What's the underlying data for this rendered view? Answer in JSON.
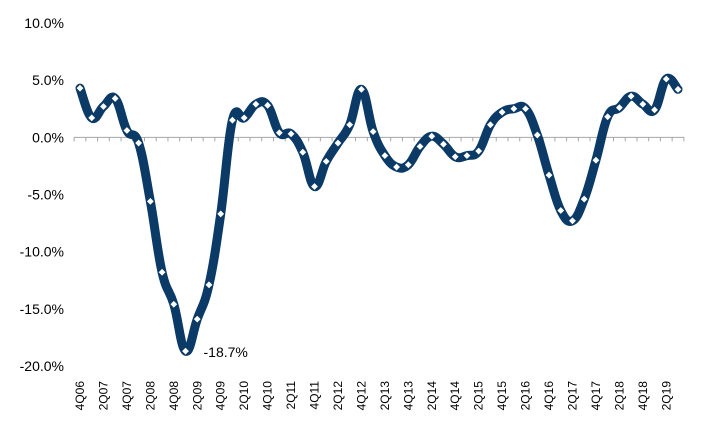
{
  "chart_data": {
    "type": "line",
    "title": "",
    "xlabel": "",
    "ylabel": "",
    "ylim": [
      -20,
      10
    ],
    "ytick_values": [
      10,
      5,
      0,
      -5,
      -10,
      -15,
      -20
    ],
    "ytick_labels": [
      "10.0%",
      "5.0%",
      "0.0%",
      "-5.0%",
      "-10.0%",
      "-15.0%",
      "-20.0%"
    ],
    "grid": false,
    "line_color": "#0b3a66",
    "marker_color": "#ffffff",
    "x": [
      "4Q06",
      "1Q07",
      "2Q07",
      "3Q07",
      "4Q07",
      "1Q08",
      "2Q08",
      "3Q08",
      "4Q08",
      "1Q09",
      "2Q09",
      "3Q09",
      "4Q09",
      "1Q10",
      "2Q10",
      "3Q10",
      "4Q10",
      "1Q11",
      "2Q11",
      "3Q11",
      "4Q11",
      "1Q12",
      "2Q12",
      "3Q12",
      "4Q12",
      "1Q13",
      "2Q13",
      "3Q13",
      "4Q13",
      "1Q14",
      "2Q14",
      "3Q14",
      "4Q14",
      "1Q15",
      "2Q15",
      "3Q15",
      "4Q15",
      "1Q16",
      "2Q16",
      "3Q16",
      "4Q16",
      "1Q17",
      "2Q17",
      "3Q17",
      "4Q17",
      "1Q18",
      "2Q18",
      "3Q18",
      "4Q18",
      "1Q19",
      "2Q19",
      "3Q19"
    ],
    "x_tick_labels": [
      "4Q06",
      "2Q07",
      "4Q07",
      "2Q08",
      "4Q08",
      "2Q09",
      "4Q09",
      "2Q10",
      "4Q10",
      "2Q11",
      "4Q11",
      "2Q12",
      "4Q12",
      "2Q13",
      "4Q13",
      "2Q14",
      "4Q14",
      "2Q15",
      "4Q15",
      "2Q16",
      "4Q16",
      "2Q17",
      "4Q17",
      "2Q18",
      "4Q18",
      "2Q19"
    ],
    "series": [
      {
        "values": [
          4.3,
          1.7,
          2.7,
          3.4,
          0.6,
          -0.5,
          -5.6,
          -11.8,
          -14.6,
          -18.7,
          -15.9,
          -12.9,
          -6.7,
          1.5,
          1.7,
          2.9,
          2.8,
          0.4,
          0.3,
          -1.3,
          -4.3,
          -2.1,
          -0.5,
          1.1,
          4.2,
          0.5,
          -1.6,
          -2.6,
          -2.4,
          -0.8,
          0.1,
          -0.6,
          -1.7,
          -1.6,
          -1.2,
          1.1,
          2.2,
          2.5,
          2.5,
          0.2,
          -3.3,
          -6.4,
          -7.3,
          -5.4,
          -2.0,
          1.8,
          2.6,
          3.6,
          2.9,
          2.4,
          5.1,
          4.2
        ]
      }
    ],
    "annotations": [
      {
        "text": "-18.7%",
        "x": "1Q09",
        "y": -18.7
      }
    ]
  }
}
